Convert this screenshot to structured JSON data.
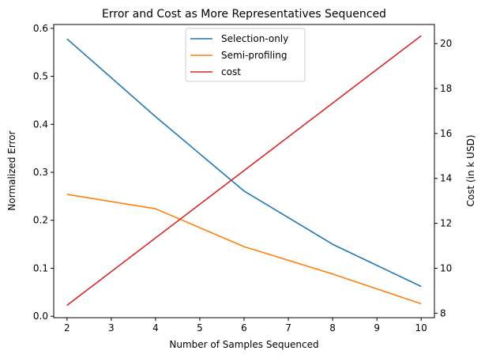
{
  "chart_data": {
    "type": "line",
    "title": "Error and Cost as More Representatives Sequenced",
    "xlabel": "Number of Samples Sequenced",
    "ylabel": "Normalized Error",
    "y2label": "Cost (in k USD)",
    "xlim": [
      1.7,
      10.3
    ],
    "ylim": [
      -0.003,
      0.608
    ],
    "y2lim": [
      7.8,
      20.85
    ],
    "xticks": [
      2,
      3,
      4,
      5,
      6,
      7,
      8,
      9,
      10
    ],
    "yticks": [
      0.0,
      0.1,
      0.2,
      0.3,
      0.4,
      0.5,
      0.6
    ],
    "y2ticks": [
      8,
      10,
      12,
      14,
      16,
      18,
      20
    ],
    "legend_position": "upper-center",
    "grid": false,
    "series": [
      {
        "name": "Selection-only",
        "axis": "left",
        "color": "#1f77b4",
        "x": [
          2,
          4,
          6,
          8,
          10
        ],
        "y": [
          0.578,
          0.416,
          0.261,
          0.15,
          0.062
        ]
      },
      {
        "name": "Semi-profiling",
        "axis": "left",
        "color": "#ff7f0e",
        "x": [
          2,
          4,
          6,
          8,
          10
        ],
        "y": [
          0.254,
          0.224,
          0.145,
          0.088,
          0.026
        ]
      },
      {
        "name": "cost",
        "axis": "right",
        "color": "#d62728",
        "x": [
          2,
          10
        ],
        "y": [
          8.35,
          20.35
        ]
      }
    ]
  }
}
